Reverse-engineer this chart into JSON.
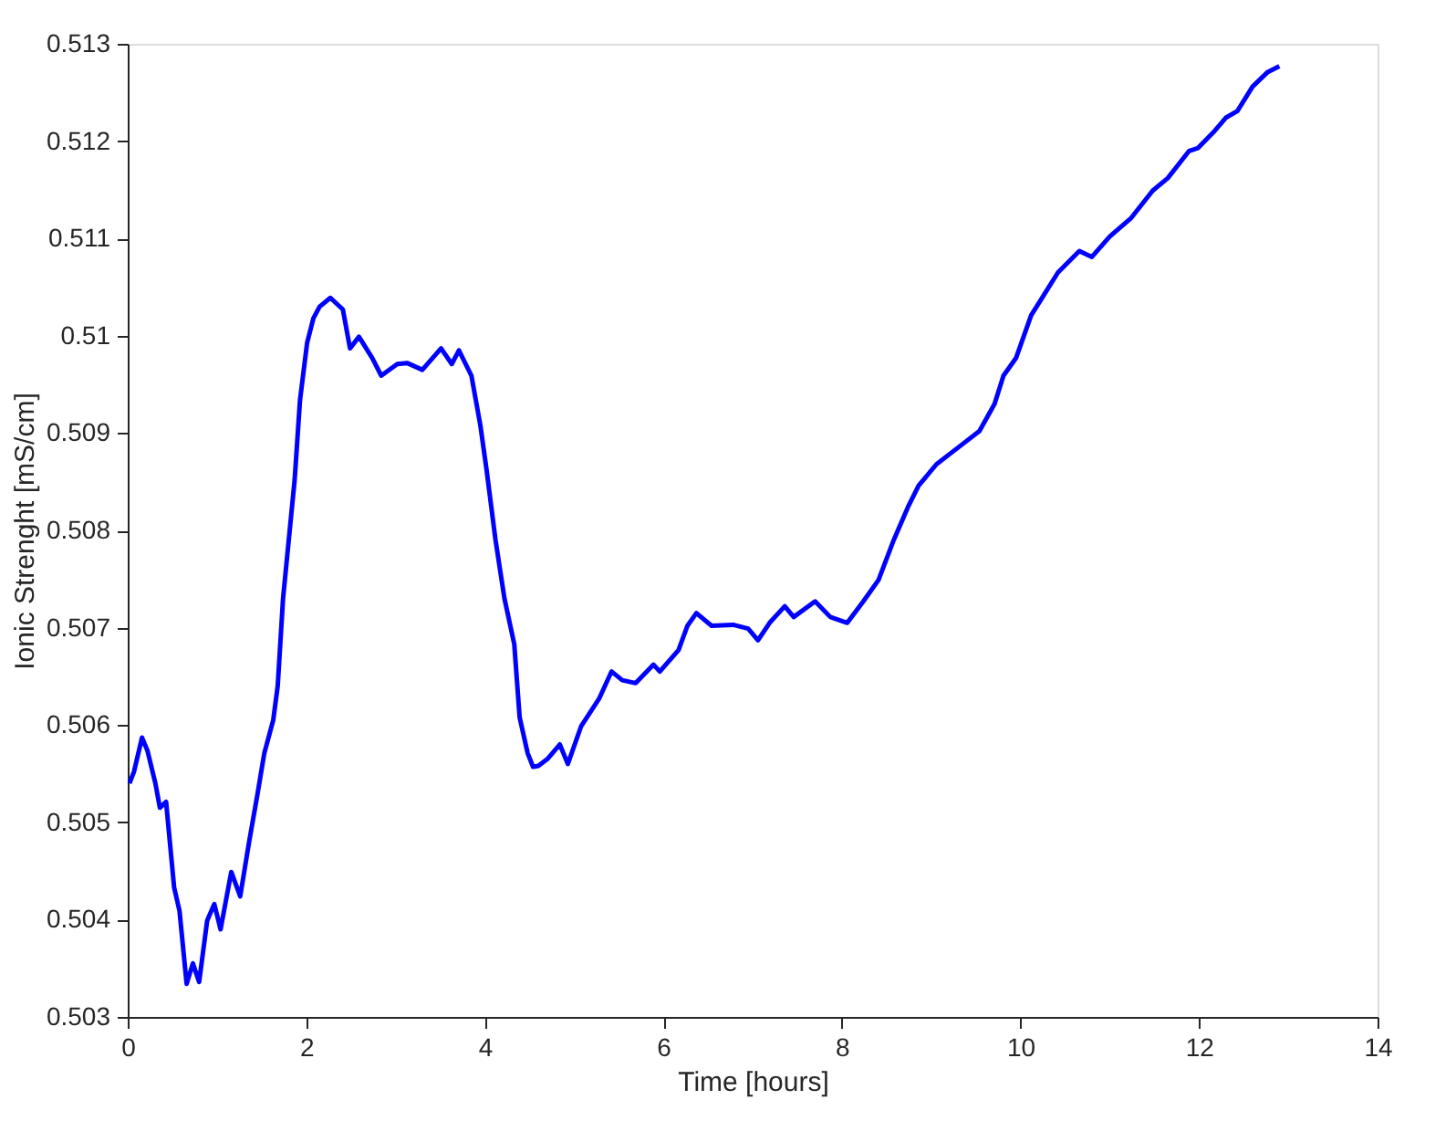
{
  "chart_data": {
    "type": "line",
    "xlabel": "Time [hours]",
    "ylabel": "Ionic Strenght [mS/cm]",
    "xlim": [
      0,
      14
    ],
    "xticks": [
      0,
      2,
      4,
      6,
      8,
      10,
      12,
      14
    ],
    "ylim": [
      0.503,
      0.513
    ],
    "yticks": [
      0.503,
      0.504,
      0.505,
      0.506,
      0.507,
      0.508,
      0.509,
      0.51,
      0.511,
      0.512,
      0.513
    ],
    "grid": false,
    "legend": false,
    "marker": "none",
    "line_style": "solid",
    "series": [
      {
        "color": "#0000ff",
        "x": [
          0.02,
          0.07,
          0.16,
          0.22,
          0.31,
          0.36,
          0.43,
          0.52,
          0.58,
          0.66,
          0.73,
          0.8,
          0.89,
          0.97,
          1.04,
          1.16,
          1.26,
          1.36,
          1.45,
          1.53,
          1.63,
          1.68,
          1.74,
          1.79,
          1.87,
          1.93,
          2.01,
          2.08,
          2.15,
          2.27,
          2.41,
          2.49,
          2.59,
          2.74,
          2.84,
          3.02,
          3.13,
          3.3,
          3.51,
          3.63,
          3.71,
          3.85,
          3.95,
          4.02,
          4.12,
          4.22,
          4.33,
          4.39,
          4.48,
          4.54,
          4.6,
          4.7,
          4.84,
          4.93,
          5.08,
          5.28,
          5.42,
          5.54,
          5.69,
          5.89,
          5.96,
          6.17,
          6.27,
          6.37,
          6.54,
          6.78,
          6.95,
          7.06,
          7.19,
          7.36,
          7.46,
          7.7,
          7.87,
          8.06,
          8.24,
          8.41,
          8.58,
          8.74,
          8.86,
          9.06,
          9.3,
          9.54,
          9.71,
          9.81,
          9.95,
          10.12,
          10.25,
          10.42,
          10.66,
          10.8,
          11.0,
          11.24,
          11.48,
          11.65,
          11.89,
          11.99,
          12.16,
          12.3,
          12.43,
          12.6,
          12.77,
          12.9
        ],
        "values": [
          0.5054,
          0.50552,
          0.50587,
          0.50574,
          0.5054,
          0.50515,
          0.50521,
          0.50433,
          0.50409,
          0.50334,
          0.50355,
          0.50336,
          0.50399,
          0.50416,
          0.5039,
          0.50449,
          0.50424,
          0.5048,
          0.50527,
          0.50571,
          0.50605,
          0.5064,
          0.5073,
          0.50777,
          0.50852,
          0.50934,
          0.50993,
          0.51018,
          0.5103,
          0.51039,
          0.51027,
          0.50987,
          0.50999,
          0.50977,
          0.50959,
          0.50971,
          0.50972,
          0.50965,
          0.50987,
          0.50971,
          0.50985,
          0.50959,
          0.50908,
          0.50862,
          0.5079,
          0.5073,
          0.50683,
          0.50608,
          0.50571,
          0.50557,
          0.50558,
          0.50565,
          0.5058,
          0.5056,
          0.50599,
          0.50627,
          0.50655,
          0.50646,
          0.50643,
          0.50662,
          0.50655,
          0.50677,
          0.50702,
          0.50715,
          0.50702,
          0.50703,
          0.50699,
          0.50687,
          0.50705,
          0.50722,
          0.50711,
          0.50727,
          0.50711,
          0.50705,
          0.50727,
          0.50749,
          0.5079,
          0.50824,
          0.50846,
          0.50868,
          0.50885,
          0.50902,
          0.5093,
          0.50959,
          0.50977,
          0.51021,
          0.5104,
          0.51065,
          0.51087,
          0.51081,
          0.51102,
          0.51121,
          0.51149,
          0.51162,
          0.5119,
          0.51193,
          0.51209,
          0.51224,
          0.51231,
          0.51256,
          0.51271,
          0.51277
        ]
      }
    ]
  }
}
